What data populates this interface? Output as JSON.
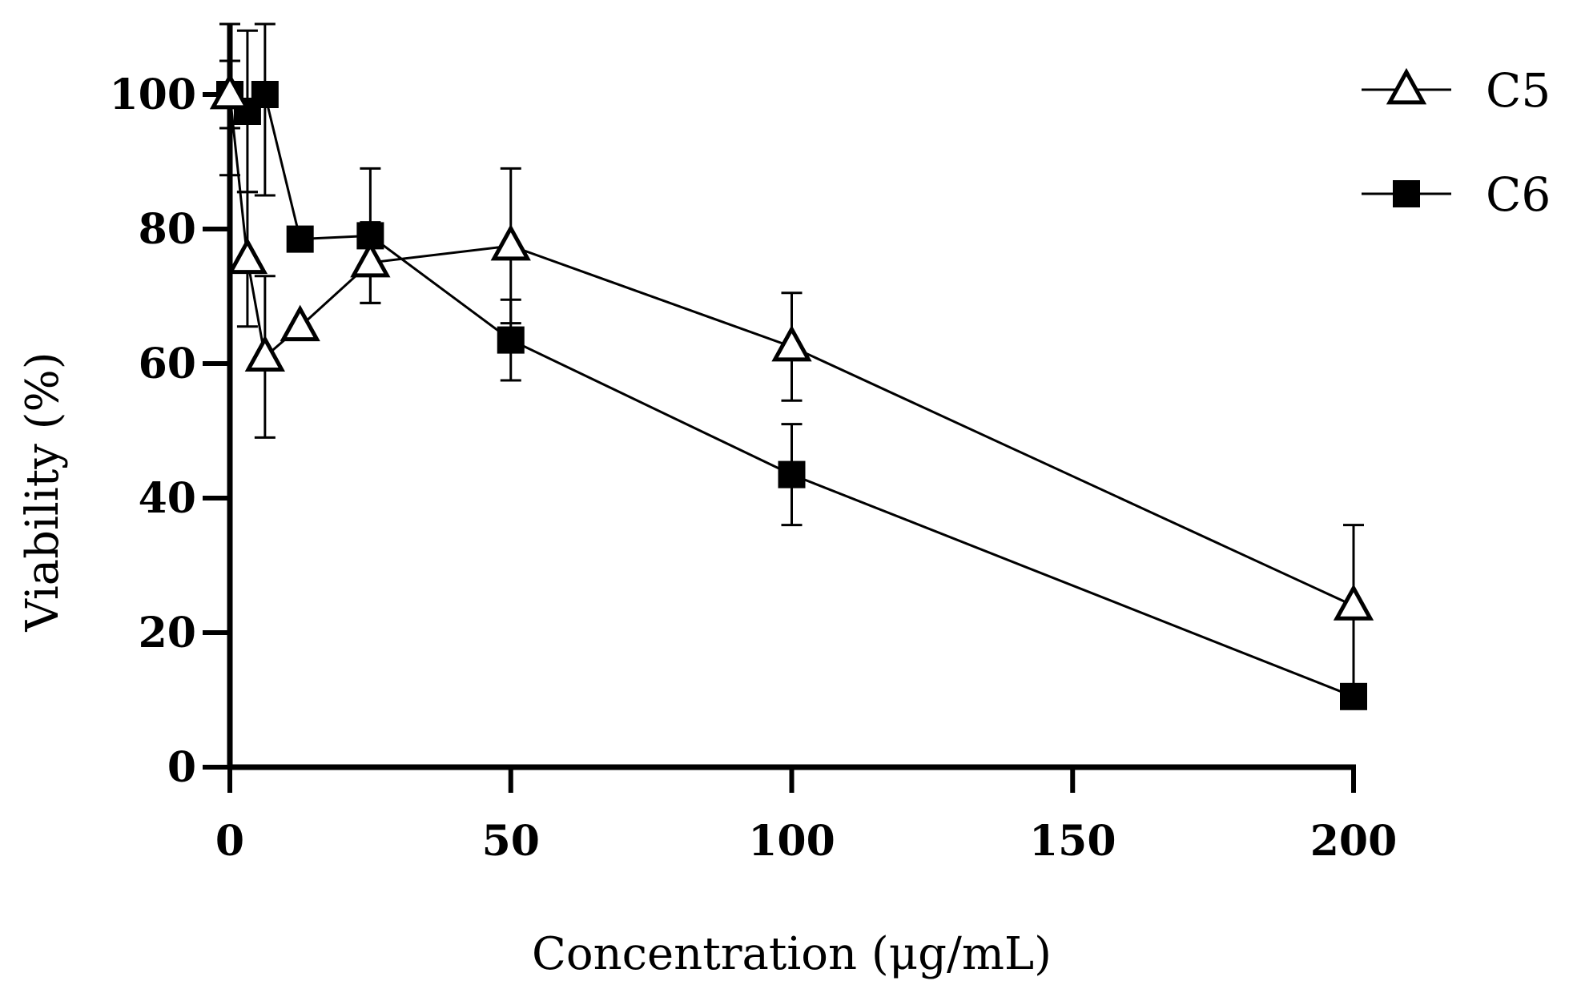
{
  "chart_data": {
    "type": "scatter",
    "title": "",
    "xlabel": "Concentration (μg/mL)",
    "ylabel": "Viability (%)",
    "xlim": [
      0,
      200
    ],
    "ylim": [
      0,
      110
    ],
    "xticks": [
      "0",
      "50",
      "100",
      "150",
      "200"
    ],
    "yticks": [
      "0",
      "20",
      "40",
      "60",
      "80",
      "100"
    ],
    "legend_position": "top-right",
    "series": [
      {
        "name": "C5",
        "marker": "open-triangle",
        "points": [
          {
            "x": 0,
            "y": 100,
            "err": 5
          },
          {
            "x": 3.125,
            "y": 75.5,
            "err": 10
          },
          {
            "x": 6.25,
            "y": 61,
            "err": 12
          },
          {
            "x": 12.5,
            "y": 65.5,
            "err": 0
          },
          {
            "x": 25,
            "y": 75,
            "err": 6
          },
          {
            "x": 50,
            "y": 77.5,
            "err": 11.5
          },
          {
            "x": 100,
            "y": 62.5,
            "err": 8
          },
          {
            "x": 200,
            "y": 24,
            "err": 12
          }
        ]
      },
      {
        "name": "C6",
        "marker": "filled-square",
        "points": [
          {
            "x": 0,
            "y": 100,
            "err": 12
          },
          {
            "x": 3.125,
            "y": 97.5,
            "err": 12
          },
          {
            "x": 6.25,
            "y": 100,
            "err": 15
          },
          {
            "x": 12.5,
            "y": 78.5,
            "err": 0
          },
          {
            "x": 25,
            "y": 79,
            "err": 10
          },
          {
            "x": 50,
            "y": 63.5,
            "err": 6
          },
          {
            "x": 100,
            "y": 43.5,
            "err": 7.5
          },
          {
            "x": 200,
            "y": 10.5,
            "err": 0
          }
        ]
      }
    ]
  }
}
